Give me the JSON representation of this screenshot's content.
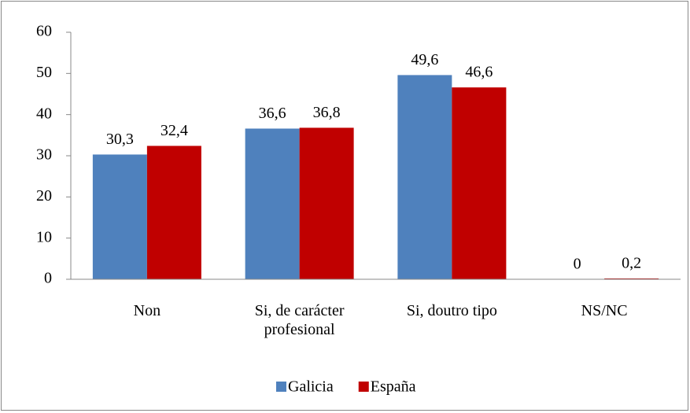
{
  "chart_data": {
    "type": "bar",
    "categories": [
      "Non",
      "Si, de carácter profesional",
      "Si, doutro tipo",
      "NS/NC"
    ],
    "series": [
      {
        "name": "Galicia",
        "color": "#4f81bd",
        "values": [
          30.3,
          36.6,
          49.6,
          0
        ],
        "value_labels": [
          "30,3",
          "36,6",
          "49,6",
          "0"
        ]
      },
      {
        "name": "España",
        "color": "#c00000",
        "values": [
          32.4,
          36.8,
          46.6,
          0.2
        ],
        "value_labels": [
          "32,4",
          "36,8",
          "46,6",
          "0,2"
        ]
      }
    ],
    "ylim": [
      0,
      60
    ],
    "yticks": [
      0,
      10,
      20,
      30,
      40,
      50,
      60
    ],
    "grid": false,
    "legend": "bottom"
  }
}
